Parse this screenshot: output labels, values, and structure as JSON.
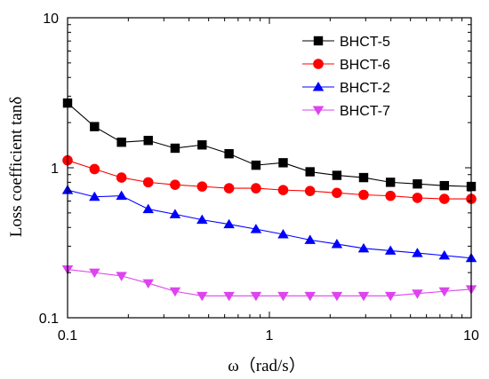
{
  "chart_data": {
    "type": "line",
    "xlabel": "ω（rad/s）",
    "ylabel": "Loss coefficient tanδ",
    "x_scale": "log",
    "y_scale": "log",
    "xlim": [
      0.1,
      10
    ],
    "ylim": [
      0.1,
      10
    ],
    "x_ticks": [
      "0.1",
      "1",
      "10"
    ],
    "y_ticks": [
      "0.1",
      "1",
      "10"
    ],
    "legend_position": "top-right",
    "x": [
      0.1,
      0.136,
      0.185,
      0.251,
      0.341,
      0.464,
      0.631,
      0.858,
      1.17,
      1.59,
      2.16,
      2.93,
      3.98,
      5.41,
      7.36,
      10
    ],
    "series": [
      {
        "name": "BHCT-5",
        "color": "#000000",
        "marker": "square",
        "values": [
          2.7,
          1.88,
          1.48,
          1.52,
          1.35,
          1.42,
          1.24,
          1.04,
          1.08,
          0.94,
          0.89,
          0.86,
          0.8,
          0.78,
          0.76,
          0.75
        ]
      },
      {
        "name": "BHCT-6",
        "color": "#ff0000",
        "marker": "circle",
        "values": [
          1.12,
          0.98,
          0.86,
          0.8,
          0.77,
          0.75,
          0.73,
          0.73,
          0.71,
          0.7,
          0.68,
          0.66,
          0.65,
          0.63,
          0.62,
          0.62
        ]
      },
      {
        "name": "BHCT-2",
        "color": "#0000ff",
        "marker": "triangle-up",
        "values": [
          0.71,
          0.64,
          0.65,
          0.53,
          0.49,
          0.45,
          0.42,
          0.39,
          0.36,
          0.33,
          0.31,
          0.29,
          0.28,
          0.27,
          0.26,
          0.25
        ]
      },
      {
        "name": "BHCT-7",
        "color": "#dd44ee",
        "marker": "triangle-down",
        "values": [
          0.21,
          0.2,
          0.19,
          0.17,
          0.15,
          0.14,
          0.14,
          0.14,
          0.14,
          0.14,
          0.14,
          0.14,
          0.14,
          0.145,
          0.15,
          0.155
        ]
      }
    ]
  }
}
